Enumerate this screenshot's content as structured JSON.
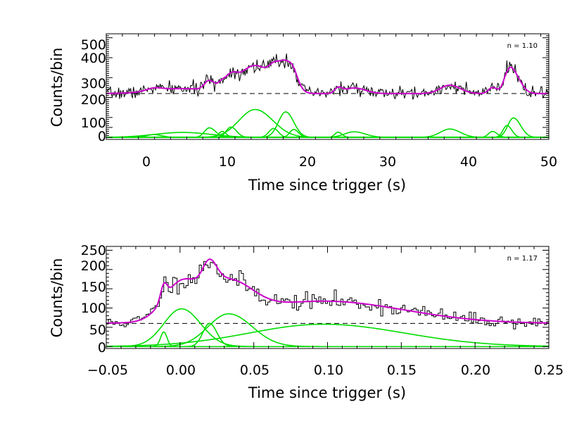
{
  "chart_data": [
    {
      "type": "line",
      "title": "",
      "xlabel": "Time since trigger (s)",
      "ylabel": "Counts/bin",
      "xlim": [
        -5,
        50
      ],
      "ylim": [
        -10,
        520
      ],
      "xticks": [
        0,
        10,
        20,
        30,
        40,
        50
      ],
      "xtick_labels": [
        "0",
        "10",
        "20",
        "30",
        "40",
        "50"
      ],
      "yticks": [
        0,
        50,
        100,
        200,
        300,
        400,
        500
      ],
      "ytick_labels": [
        "0",
        "",
        "100",
        "200",
        "300",
        "400",
        "500"
      ],
      "annotation": "n = 1.10",
      "baseline": 220,
      "colors": {
        "data": "#000000",
        "model": "#cc00cc",
        "pulses": "#00dd00",
        "baseline": "#000000"
      },
      "pulses": [
        {
          "peak": 0.9,
          "amp": 14,
          "rise": 0.9,
          "decay": 1.0
        },
        {
          "peak": 4.5,
          "amp": 25,
          "rise": 3.5,
          "decay": 3.5
        },
        {
          "peak": 7.8,
          "amp": 48,
          "rise": 0.6,
          "decay": 0.8
        },
        {
          "peak": 9.4,
          "amp": 30,
          "rise": 0.4,
          "decay": 0.5
        },
        {
          "peak": 10.5,
          "amp": 52,
          "rise": 0.6,
          "decay": 0.7
        },
        {
          "peak": 13.5,
          "amp": 140,
          "rise": 2.0,
          "decay": 2.2
        },
        {
          "peak": 15.8,
          "amp": 45,
          "rise": 0.6,
          "decay": 0.6
        },
        {
          "peak": 17.3,
          "amp": 128,
          "rise": 0.9,
          "decay": 1.0
        },
        {
          "peak": 18.3,
          "amp": 40,
          "rise": 0.5,
          "decay": 0.6
        },
        {
          "peak": 23.8,
          "amp": 26,
          "rise": 0.4,
          "decay": 0.5
        },
        {
          "peak": 25.8,
          "amp": 28,
          "rise": 1.2,
          "decay": 1.4
        },
        {
          "peak": 37.7,
          "amp": 42,
          "rise": 1.2,
          "decay": 1.3
        },
        {
          "peak": 43.0,
          "amp": 30,
          "rise": 0.5,
          "decay": 0.6
        },
        {
          "peak": 44.8,
          "amp": 60,
          "rise": 0.5,
          "decay": 0.6
        },
        {
          "peak": 45.6,
          "amp": 98,
          "rise": 0.7,
          "decay": 0.9
        }
      ]
    },
    {
      "type": "line",
      "title": "",
      "xlabel": "Time since trigger (s)",
      "ylabel": "Counts/bin",
      "xlim": [
        -0.05,
        0.25
      ],
      "ylim": [
        -5,
        260
      ],
      "xticks": [
        -0.05,
        0.0,
        0.05,
        0.1,
        0.15,
        0.2,
        0.25
      ],
      "xtick_labels": [
        "−0.05",
        "0.00",
        "0.05",
        "0.10",
        "0.15",
        "0.20",
        "0.25"
      ],
      "yticks": [
        0,
        50,
        100,
        150,
        200,
        250
      ],
      "ytick_labels": [
        "0",
        "50",
        "100",
        "150",
        "200",
        "250"
      ],
      "annotation": "n = 1.17",
      "baseline": 60,
      "colors": {
        "data": "#000000",
        "model": "#cc00cc",
        "pulses": "#00dd00",
        "baseline": "#000000"
      },
      "pulses": [
        {
          "peak": -0.011,
          "amp": 38,
          "rise": 0.0022,
          "decay": 0.0022
        },
        {
          "peak": 0.001,
          "amp": 98,
          "rise": 0.012,
          "decay": 0.013
        },
        {
          "peak": 0.02,
          "amp": 60,
          "rise": 0.0045,
          "decay": 0.005
        },
        {
          "peak": 0.033,
          "amp": 85,
          "rise": 0.014,
          "decay": 0.016
        },
        {
          "peak": 0.097,
          "amp": 58,
          "rise": 0.05,
          "decay": 0.055
        }
      ]
    }
  ]
}
